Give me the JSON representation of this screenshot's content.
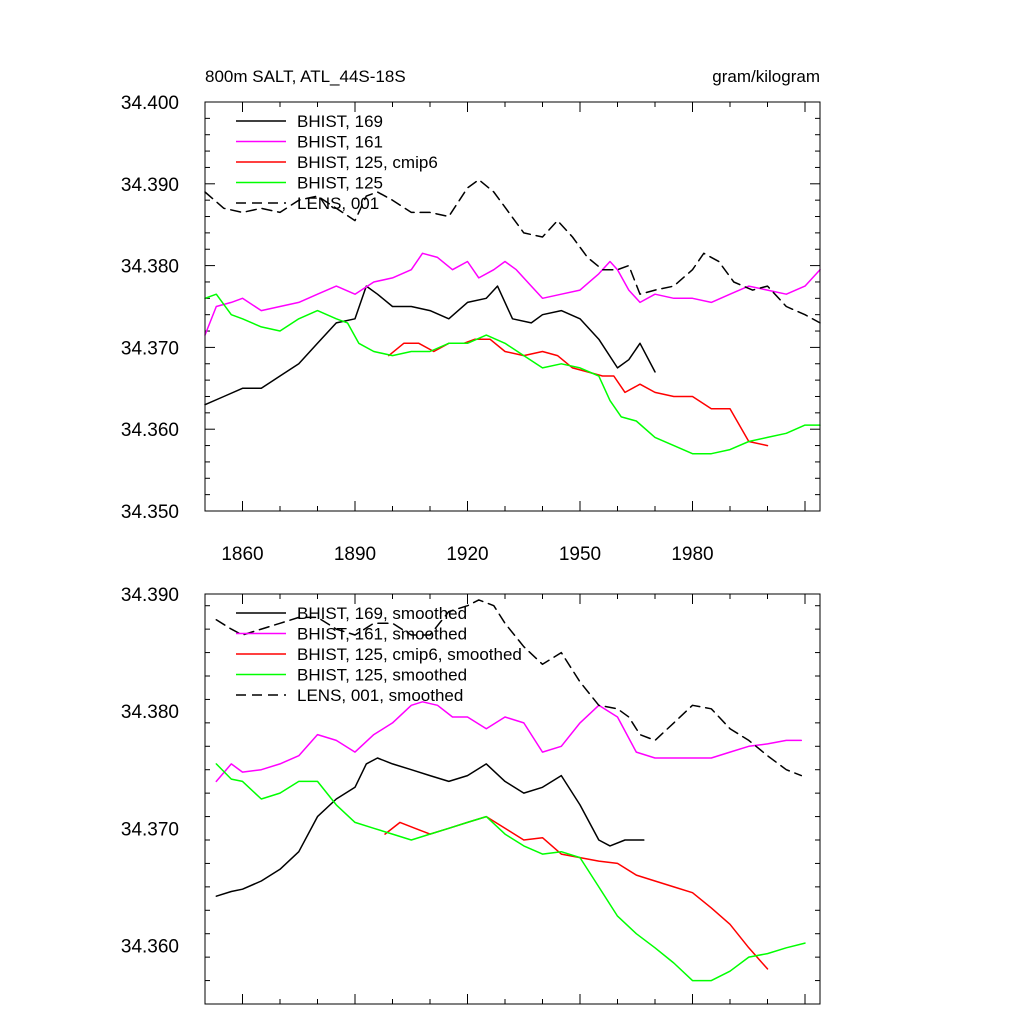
{
  "chart_data": [
    {
      "type": "line",
      "title": "800m SALT, ATL_44S-18S",
      "units": "gram/kilogram",
      "xlim": [
        1850,
        2014
      ],
      "ylim": [
        34.35,
        34.4
      ],
      "xticks": [
        "1860",
        "1890",
        "1920",
        "1950",
        "1980"
      ],
      "yticks": [
        "34.350",
        "34.360",
        "34.370",
        "34.380",
        "34.390",
        "34.400"
      ],
      "series": [
        {
          "name": "BHIST, 169",
          "color": "#000000",
          "dash": "solid",
          "x": [
            1850,
            1855,
            1860,
            1865,
            1870,
            1875,
            1880,
            1885,
            1890,
            1893,
            1896,
            1900,
            1905,
            1910,
            1915,
            1920,
            1925,
            1928,
            1932,
            1937,
            1940,
            1945,
            1950,
            1955,
            1960,
            1963,
            1966,
            1970
          ],
          "values": [
            34.363,
            34.364,
            34.365,
            34.365,
            34.3665,
            34.368,
            34.3705,
            34.373,
            34.3735,
            34.3775,
            34.3765,
            34.375,
            34.375,
            34.3745,
            34.3735,
            34.3755,
            34.376,
            34.3775,
            34.3735,
            34.373,
            34.374,
            34.3745,
            34.3735,
            34.371,
            34.3675,
            34.3685,
            34.3705,
            34.367
          ]
        },
        {
          "name": "BHIST, 161",
          "color": "#ff00ff",
          "dash": "solid",
          "x": [
            1850,
            1853,
            1857,
            1860,
            1865,
            1870,
            1875,
            1880,
            1885,
            1890,
            1895,
            1900,
            1905,
            1908,
            1912,
            1916,
            1920,
            1923,
            1927,
            1930,
            1933,
            1937,
            1940,
            1945,
            1950,
            1955,
            1958,
            1960,
            1963,
            1966,
            1970,
            1975,
            1980,
            1985,
            1990,
            1995,
            2000,
            2005,
            2010,
            2014
          ],
          "values": [
            34.3715,
            34.375,
            34.3755,
            34.376,
            34.3745,
            34.375,
            34.3755,
            34.3765,
            34.3775,
            34.3765,
            34.378,
            34.3785,
            34.3795,
            34.3815,
            34.381,
            34.3795,
            34.3805,
            34.3785,
            34.3795,
            34.3805,
            34.3795,
            34.3775,
            34.376,
            34.3765,
            34.377,
            34.379,
            34.3805,
            34.3795,
            34.377,
            34.3755,
            34.3765,
            34.376,
            34.376,
            34.3755,
            34.3765,
            34.3775,
            34.377,
            34.3765,
            34.3775,
            34.3795
          ]
        },
        {
          "name": "BHIST, 125, cmip6",
          "color": "#ff0000",
          "dash": "solid",
          "x": [
            1899,
            1903,
            1907,
            1911,
            1915,
            1919,
            1922,
            1926,
            1930,
            1935,
            1940,
            1944,
            1948,
            1952,
            1956,
            1959,
            1962,
            1966,
            1970,
            1975,
            1980,
            1985,
            1990,
            1995,
            2000
          ],
          "values": [
            34.369,
            34.3705,
            34.3705,
            34.3695,
            34.3705,
            34.3705,
            34.371,
            34.371,
            34.3695,
            34.369,
            34.3695,
            34.369,
            34.3675,
            34.367,
            34.3665,
            34.3665,
            34.3645,
            34.3655,
            34.3645,
            34.364,
            34.364,
            34.3625,
            34.3625,
            34.3585,
            34.358
          ]
        },
        {
          "name": "BHIST, 125",
          "color": "#00ff00",
          "dash": "solid",
          "x": [
            1850,
            1853,
            1857,
            1860,
            1865,
            1870,
            1875,
            1880,
            1885,
            1888,
            1891,
            1895,
            1900,
            1905,
            1910,
            1915,
            1920,
            1925,
            1930,
            1935,
            1940,
            1945,
            1950,
            1955,
            1958,
            1961,
            1965,
            1970,
            1975,
            1980,
            1985,
            1990,
            1995,
            2000,
            2005,
            2010,
            2014
          ],
          "values": [
            34.376,
            34.3765,
            34.374,
            34.3735,
            34.3725,
            34.372,
            34.3735,
            34.3745,
            34.3735,
            34.373,
            34.3705,
            34.3695,
            34.369,
            34.3695,
            34.3695,
            34.3705,
            34.3705,
            34.3715,
            34.3705,
            34.369,
            34.3675,
            34.368,
            34.3675,
            34.3665,
            34.3635,
            34.3615,
            34.361,
            34.359,
            34.358,
            34.357,
            34.357,
            34.3575,
            34.3585,
            34.359,
            34.3595,
            34.3605,
            34.3605
          ]
        },
        {
          "name": "LENS, 001",
          "color": "#000000",
          "dash": "dashed",
          "x": [
            1850,
            1855,
            1860,
            1865,
            1870,
            1875,
            1880,
            1885,
            1890,
            1893,
            1896,
            1900,
            1905,
            1910,
            1915,
            1920,
            1923,
            1927,
            1931,
            1935,
            1940,
            1944,
            1948,
            1952,
            1956,
            1960,
            1963,
            1966,
            1970,
            1975,
            1980,
            1983,
            1987,
            1991,
            1996,
            2000,
            2005,
            2010,
            2014
          ],
          "values": [
            34.389,
            34.387,
            34.3865,
            34.387,
            34.3865,
            34.388,
            34.3885,
            34.387,
            34.3855,
            34.3885,
            34.389,
            34.388,
            34.3865,
            34.3865,
            34.386,
            34.3895,
            34.3905,
            34.389,
            34.3865,
            34.384,
            34.3835,
            34.3855,
            34.3835,
            34.381,
            34.3795,
            34.3795,
            34.38,
            34.3765,
            34.377,
            34.3775,
            34.3795,
            34.3815,
            34.3805,
            34.378,
            34.377,
            34.3775,
            34.375,
            34.374,
            34.373
          ]
        }
      ]
    },
    {
      "type": "line",
      "xlim": [
        1850,
        2014
      ],
      "ylim": [
        34.355,
        34.39
      ],
      "xticks": [
        "",
        "",
        "",
        "",
        ""
      ],
      "yticks": [
        "34.360",
        "34.370",
        "34.380",
        "34.390"
      ],
      "series": [
        {
          "name": "BHIST, 169, smoothed",
          "color": "#000000",
          "dash": "solid",
          "x": [
            1853,
            1857,
            1860,
            1865,
            1870,
            1875,
            1880,
            1885,
            1890,
            1893,
            1896,
            1900,
            1905,
            1910,
            1915,
            1920,
            1925,
            1930,
            1935,
            1940,
            1945,
            1950,
            1955,
            1958,
            1962,
            1965,
            1967
          ],
          "values": [
            34.3642,
            34.3646,
            34.3648,
            34.3655,
            34.3665,
            34.368,
            34.371,
            34.3725,
            34.3735,
            34.3755,
            34.376,
            34.3755,
            34.375,
            34.3745,
            34.374,
            34.3745,
            34.3755,
            34.374,
            34.373,
            34.3735,
            34.3745,
            34.372,
            34.369,
            34.3685,
            34.369,
            34.369,
            34.369
          ]
        },
        {
          "name": "BHIST, 161, smoothed",
          "color": "#ff00ff",
          "dash": "solid",
          "x": [
            1853,
            1857,
            1860,
            1865,
            1870,
            1875,
            1880,
            1885,
            1890,
            1895,
            1900,
            1905,
            1908,
            1912,
            1916,
            1920,
            1925,
            1930,
            1935,
            1940,
            1945,
            1950,
            1955,
            1960,
            1965,
            1970,
            1975,
            1980,
            1985,
            1990,
            1995,
            2000,
            2005,
            2009
          ],
          "values": [
            34.374,
            34.3755,
            34.3748,
            34.375,
            34.3755,
            34.3762,
            34.378,
            34.3775,
            34.3765,
            34.378,
            34.379,
            34.3805,
            34.3808,
            34.3805,
            34.3795,
            34.3795,
            34.3785,
            34.3795,
            34.379,
            34.3765,
            34.377,
            34.379,
            34.3805,
            34.3795,
            34.3765,
            34.376,
            34.376,
            34.376,
            34.376,
            34.3765,
            34.377,
            34.3772,
            34.3775,
            34.3775
          ]
        },
        {
          "name": "BHIST, 125, cmip6, smoothed",
          "color": "#ff0000",
          "dash": "solid",
          "x": [
            1898,
            1902,
            1906,
            1910,
            1915,
            1920,
            1925,
            1930,
            1935,
            1940,
            1945,
            1950,
            1955,
            1960,
            1965,
            1970,
            1975,
            1980,
            1985,
            1990,
            1995,
            2000
          ],
          "values": [
            34.3695,
            34.3705,
            34.37,
            34.3695,
            34.37,
            34.3705,
            34.371,
            34.37,
            34.369,
            34.3692,
            34.3678,
            34.3675,
            34.3672,
            34.367,
            34.366,
            34.3655,
            34.365,
            34.3645,
            34.3632,
            34.3618,
            34.3598,
            34.358
          ]
        },
        {
          "name": "BHIST, 125, smoothed",
          "color": "#00ff00",
          "dash": "solid",
          "x": [
            1853,
            1857,
            1860,
            1865,
            1870,
            1875,
            1880,
            1885,
            1890,
            1895,
            1900,
            1905,
            1910,
            1915,
            1920,
            1925,
            1930,
            1935,
            1940,
            1945,
            1950,
            1955,
            1960,
            1965,
            1970,
            1975,
            1980,
            1985,
            1990,
            1995,
            2000,
            2005,
            2010
          ],
          "values": [
            34.3755,
            34.3742,
            34.374,
            34.3725,
            34.373,
            34.374,
            34.374,
            34.372,
            34.3705,
            34.37,
            34.3695,
            34.369,
            34.3695,
            34.37,
            34.3705,
            34.371,
            34.3695,
            34.3685,
            34.3678,
            34.368,
            34.3675,
            34.365,
            34.3625,
            34.361,
            34.3598,
            34.3585,
            34.357,
            34.357,
            34.3578,
            34.359,
            34.3593,
            34.3598,
            34.3602
          ]
        },
        {
          "name": "LENS, 001, smoothed",
          "color": "#000000",
          "dash": "dashed",
          "x": [
            1853,
            1857,
            1860,
            1865,
            1870,
            1875,
            1880,
            1885,
            1890,
            1895,
            1900,
            1905,
            1910,
            1915,
            1920,
            1923,
            1927,
            1930,
            1935,
            1940,
            1945,
            1950,
            1955,
            1960,
            1963,
            1966,
            1970,
            1975,
            1980,
            1985,
            1990,
            1995,
            2000,
            2005,
            2009
          ],
          "values": [
            34.3878,
            34.387,
            34.3865,
            34.387,
            34.3875,
            34.388,
            34.388,
            34.387,
            34.3865,
            34.3875,
            34.3875,
            34.3865,
            34.3865,
            34.3885,
            34.389,
            34.3895,
            34.389,
            34.3875,
            34.3855,
            34.384,
            34.385,
            34.3825,
            34.3805,
            34.3802,
            34.3795,
            34.378,
            34.3775,
            34.379,
            34.3805,
            34.3802,
            34.3785,
            34.3775,
            34.3762,
            34.375,
            34.3745
          ]
        }
      ]
    }
  ]
}
